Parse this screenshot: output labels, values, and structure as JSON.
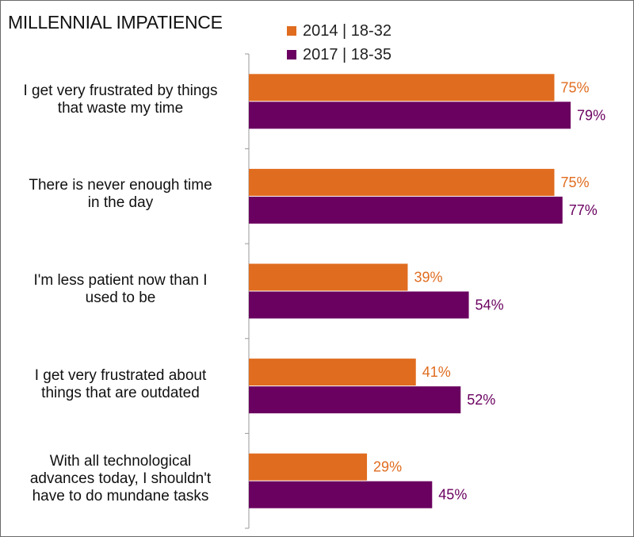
{
  "chart_data": {
    "type": "bar",
    "orientation": "horizontal",
    "title": "MILLENNIAL IMPATIENCE",
    "categories": [
      "I get very frustrated by things that waste my time",
      "There is never enough time in the day",
      "I'm less patient now than I used to be",
      "I get very frustrated about things that are outdated",
      "With all technological advances today, I shouldn't have to do mundane tasks"
    ],
    "category_lines": [
      [
        "I get very frustrated by things",
        "that waste my time"
      ],
      [
        "There is never enough time",
        "in the day"
      ],
      [
        "I'm less patient now than I",
        "used to be"
      ],
      [
        "I get very frustrated about",
        "things that are outdated"
      ],
      [
        "With all technological",
        "advances today, I shouldn't",
        "have to do mundane tasks"
      ]
    ],
    "series": [
      {
        "name": "2014 | 18-32",
        "color": "#E06C1F",
        "values": [
          75,
          75,
          39,
          41,
          29
        ],
        "labels": [
          "75%",
          "75%",
          "39%",
          "41%",
          "29%"
        ]
      },
      {
        "name": "2017 | 18-35",
        "color": "#6A005F",
        "values": [
          79,
          77,
          54,
          52,
          45
        ],
        "labels": [
          "79%",
          "77%",
          "54%",
          "52%",
          "45%"
        ]
      }
    ],
    "xlim": [
      0,
      100
    ],
    "legend_position": "top",
    "grid": false
  }
}
